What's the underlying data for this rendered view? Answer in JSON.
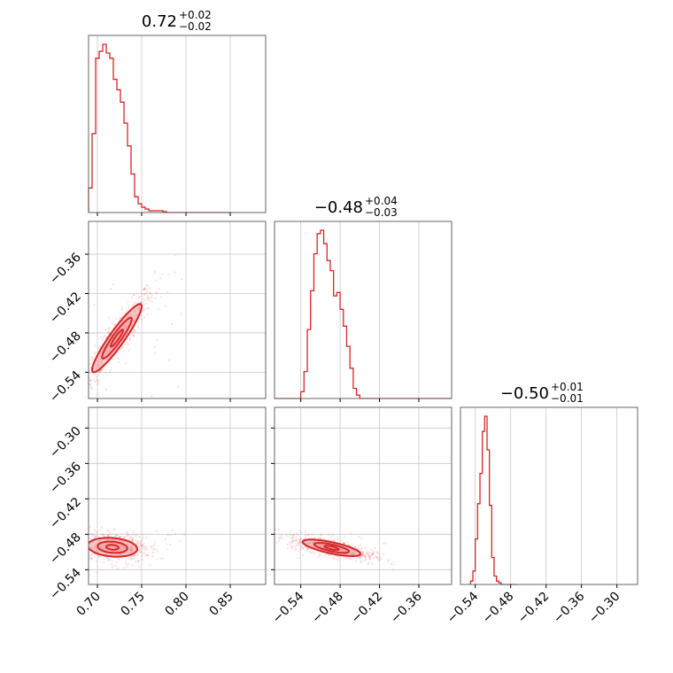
{
  "chart_data": {
    "type": "corner",
    "color": "#d62728",
    "contour_fill": "#f2a0a4",
    "grid": true,
    "titles": [
      {
        "value": "0.72",
        "plus": "+0.02",
        "minus": "−0.02"
      },
      {
        "value": "−0.48",
        "plus": "+0.04",
        "minus": "−0.03"
      },
      {
        "value": "−0.50",
        "plus": "+0.01",
        "minus": "−0.01"
      }
    ],
    "params": [
      {
        "range": [
          0.69,
          0.89
        ],
        "ticks": [
          0.7,
          0.75,
          0.8,
          0.85
        ],
        "tick_labels": [
          "0.70",
          "0.75",
          "0.80",
          "0.85"
        ]
      },
      {
        "range": [
          -0.58,
          -0.31
        ],
        "ticks": [
          -0.54,
          -0.48,
          -0.42,
          -0.36
        ],
        "tick_labels": [
          "−0.54",
          "−0.48",
          "−0.42",
          "−0.36"
        ]
      },
      {
        "range": [
          -0.565,
          -0.265
        ],
        "ticks": [
          -0.54,
          -0.48,
          -0.42,
          -0.36,
          -0.3
        ],
        "tick_labels": [
          "−0.54",
          "−0.48",
          "−0.42",
          "−0.36",
          "−0.30"
        ]
      }
    ],
    "histograms": [
      {
        "param": 0,
        "bin_width": 0.004,
        "start": 0.69,
        "counts": [
          0.14,
          0.45,
          0.88,
          0.92,
          0.96,
          0.91,
          0.88,
          0.76,
          0.7,
          0.63,
          0.51,
          0.38,
          0.22,
          0.09,
          0.05,
          0.03,
          0.02,
          0.01,
          0.01,
          0.01,
          0.01,
          0.005,
          0.0,
          0.0,
          0.0,
          0.0,
          0.0,
          0.0,
          0.0,
          0.0,
          0.0,
          0.0,
          0.0,
          0.0,
          0.0,
          0.0,
          0.0,
          0.0,
          0.0,
          0.0
        ]
      },
      {
        "param": 1,
        "bin_width": 0.005,
        "start": -0.58,
        "counts": [
          0.0,
          0.0,
          0.0,
          0.0,
          0.0,
          0.0,
          0.0,
          0.0,
          0.04,
          0.16,
          0.41,
          0.64,
          0.86,
          0.98,
          1.0,
          0.92,
          0.82,
          0.76,
          0.61,
          0.63,
          0.53,
          0.43,
          0.31,
          0.18,
          0.06,
          0.02,
          0.0,
          0.0,
          0.0,
          0.0,
          0.0,
          0.0,
          0.0,
          0.0,
          0.0,
          0.0,
          0.0,
          0.0,
          0.0,
          0.0,
          0.0,
          0.0,
          0.0,
          0.0,
          0.0,
          0.0,
          0.0,
          0.0,
          0.0,
          0.0,
          0.0,
          0.0,
          0.0,
          0.0
        ]
      },
      {
        "param": 2,
        "bin_width": 0.004,
        "start": -0.548,
        "counts": [
          0.02,
          0.08,
          0.27,
          0.48,
          0.66,
          0.91,
          1.0,
          0.8,
          0.47,
          0.16,
          0.05,
          0.02,
          0.01,
          0.0,
          0.0,
          0.0,
          0.0,
          0.0,
          0.0,
          0.0
        ]
      }
    ],
    "pairs": [
      {
        "x_param": 0,
        "y_param": 1,
        "center": [
          0.722,
          -0.488
        ],
        "spread": [
          0.014,
          0.026
        ],
        "corr": 0.93,
        "scatter_range": [
          [
            0.693,
            0.8
          ],
          [
            -0.58,
            -0.38
          ]
        ]
      },
      {
        "x_param": 0,
        "y_param": 2,
        "center": [
          0.717,
          -0.502
        ],
        "spread": [
          0.014,
          0.008
        ],
        "corr": -0.18,
        "scatter_range": [
          [
            0.693,
            0.8
          ],
          [
            -0.525,
            -0.47
          ]
        ]
      },
      {
        "x_param": 1,
        "y_param": 2,
        "center": [
          -0.493,
          -0.503
        ],
        "spread": [
          0.022,
          0.007
        ],
        "corr": -0.72,
        "scatter_range": [
          [
            -0.56,
            -0.41
          ],
          [
            -0.525,
            -0.475
          ]
        ]
      }
    ]
  }
}
